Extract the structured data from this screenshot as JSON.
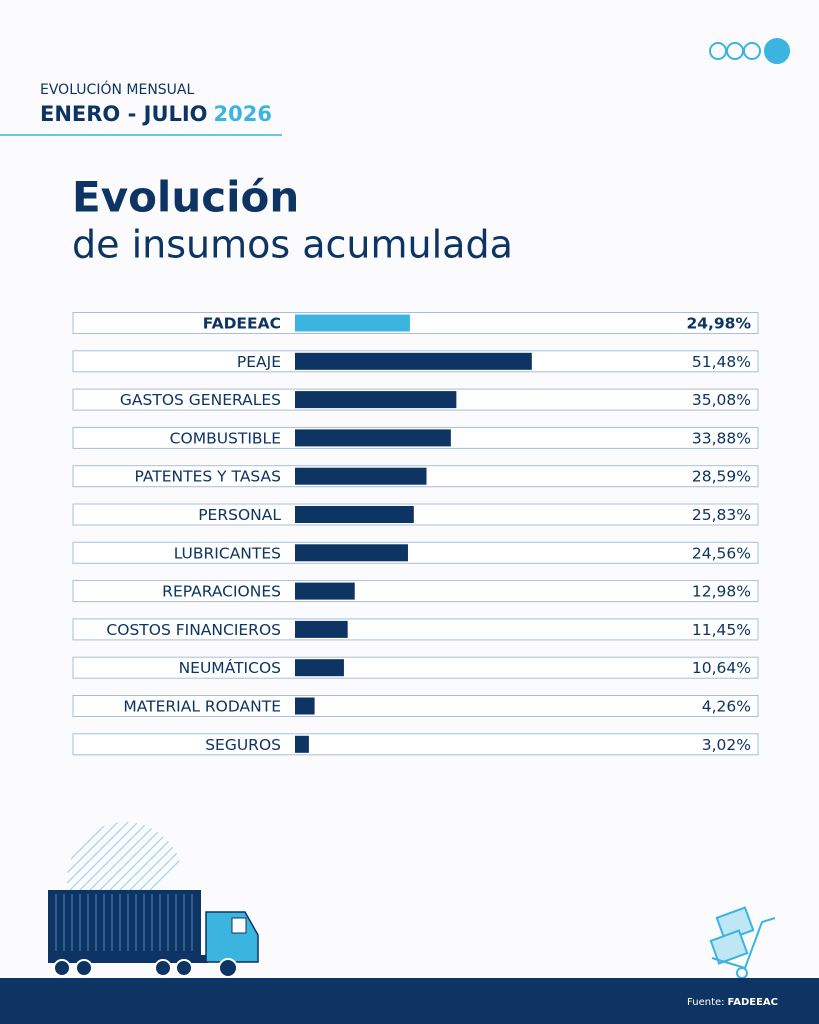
{
  "header": {
    "kicker": "EVOLUCIÓN MENSUAL",
    "period": "ENERO - JULIO",
    "year": "2026"
  },
  "chart_data": {
    "type": "bar",
    "orientation": "horizontal",
    "title": "Evolución",
    "subtitle": "de insumos acumulada",
    "categories": [
      "FADEEAC",
      "PEAJE",
      "GASTOS GENERALES",
      "COMBUSTIBLE",
      "PATENTES Y TASAS",
      "PERSONAL",
      "LUBRICANTES",
      "REPARACIONES",
      "COSTOS FINANCIEROS",
      "NEUMÁTICOS",
      "MATERIAL RODANTE",
      "SEGUROS"
    ],
    "values": [
      24.98,
      51.48,
      35.08,
      33.88,
      28.59,
      25.83,
      24.56,
      12.98,
      11.45,
      10.64,
      4.26,
      3.02
    ],
    "value_labels": [
      "24,98%",
      "51,48%",
      "35,08%",
      "33,88%",
      "28,59%",
      "25,83%",
      "24,56%",
      "12,98%",
      "11,45%",
      "10,64%",
      "4,26%",
      "3,02%"
    ],
    "colors": [
      "#3bb5e0",
      "#0d3463",
      "#0d3463",
      "#0d3463",
      "#0d3463",
      "#0d3463",
      "#0d3463",
      "#0d3463",
      "#0d3463",
      "#0d3463",
      "#0d3463",
      "#0d3463"
    ]
  },
  "footer": {
    "source_label": "Fuente:",
    "source": "FADEEAC"
  }
}
